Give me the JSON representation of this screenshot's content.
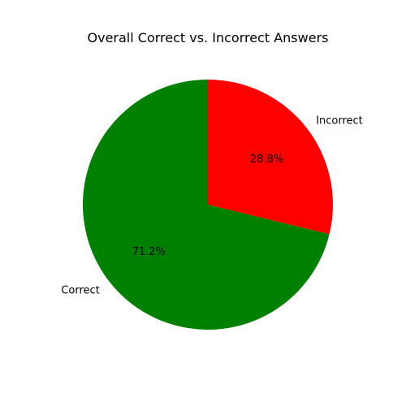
{
  "chart_data": {
    "type": "pie",
    "title": "Overall Correct vs. Incorrect Answers",
    "start_angle_deg": 90,
    "direction": "counterclockwise",
    "slices": [
      {
        "label": "Correct",
        "value": 71.2,
        "pct_label": "71.2%",
        "color": "#008000"
      },
      {
        "label": "Incorrect",
        "value": 28.8,
        "pct_label": "28.8%",
        "color": "#ff0000"
      }
    ]
  }
}
